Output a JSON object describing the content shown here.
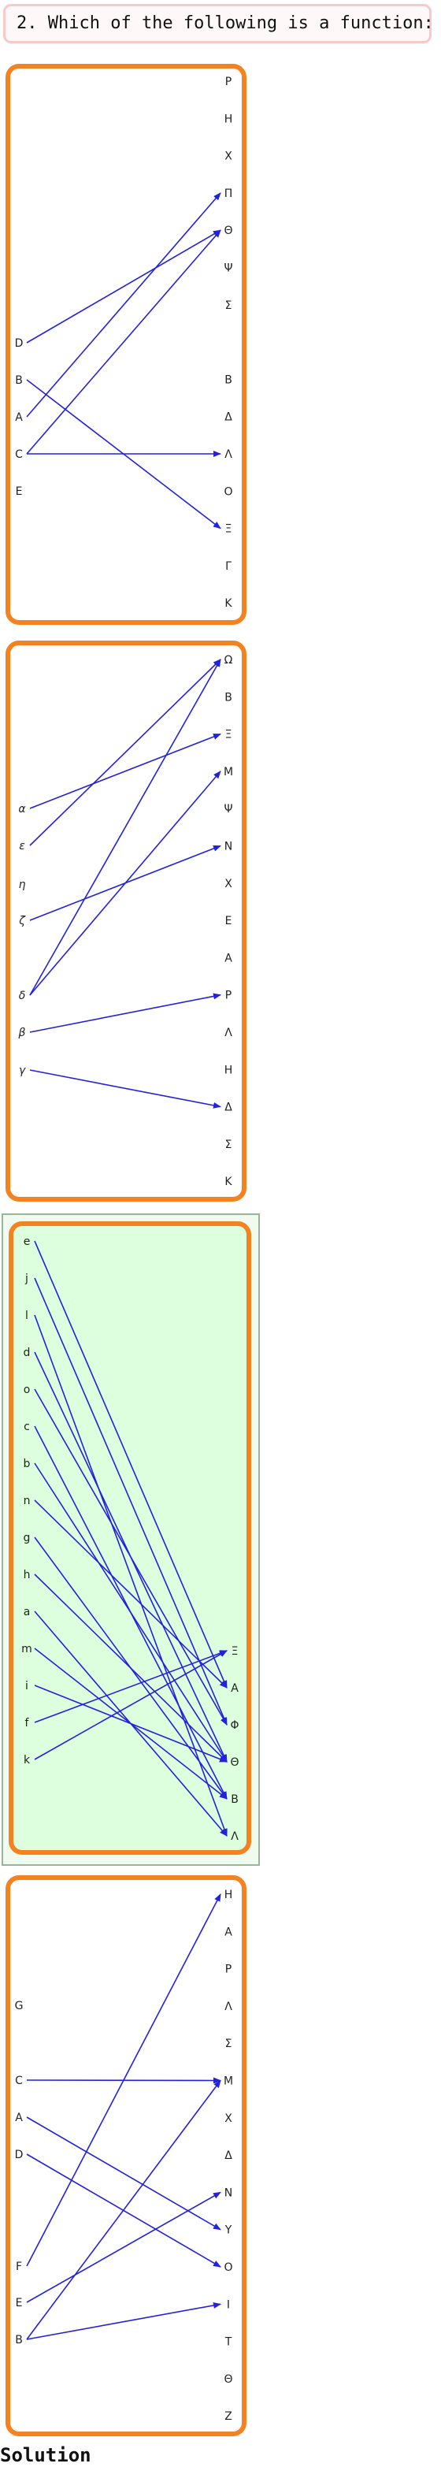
{
  "question": "2. Which of the following is a function:",
  "solution_label": "Solution",
  "colors": {
    "panel_border": "#f58220",
    "arrow": "#2222dd",
    "highlight_fill": "#ddffdd",
    "question_border": "#f7c9c9"
  },
  "panels": [
    {
      "selected": false,
      "left": [
        "D",
        "B",
        "A",
        "C",
        "E"
      ],
      "right": [
        "Ρ",
        "Η",
        "Χ",
        "Π",
        "Θ",
        "Ψ",
        "Σ",
        "",
        "Β",
        "Δ",
        "Λ",
        "Ο",
        "Ξ",
        "Γ",
        "Κ"
      ],
      "mappings": [
        [
          "D",
          "Θ"
        ],
        [
          "B",
          "Ξ"
        ],
        [
          "A",
          "Π"
        ],
        [
          "C",
          "Θ"
        ],
        [
          "C",
          "Λ"
        ]
      ]
    },
    {
      "selected": false,
      "left": [
        "α",
        "ε",
        "η",
        "ζ",
        "δ",
        "β",
        "γ"
      ],
      "right": [
        "Ω",
        "Β",
        "Ξ",
        "Μ",
        "Ψ",
        "Ν",
        "Χ",
        "Ε",
        "Α",
        "Ρ",
        "Λ",
        "Η",
        "Δ",
        "Σ",
        "Κ"
      ],
      "mappings": [
        [
          "α",
          "Ξ"
        ],
        [
          "ε",
          "Ω"
        ],
        [
          "ζ",
          "Ν"
        ],
        [
          "δ",
          "Ω"
        ],
        [
          "δ",
          "Μ"
        ],
        [
          "β",
          "Ρ"
        ],
        [
          "γ",
          "Δ"
        ]
      ]
    },
    {
      "selected": true,
      "left": [
        "e",
        "j",
        "l",
        "d",
        "o",
        "c",
        "b",
        "n",
        "g",
        "h",
        "a",
        "m",
        "i",
        "f",
        "k"
      ],
      "right": [
        "Ξ",
        "Α",
        "Φ",
        "Θ",
        "Β",
        "Λ"
      ],
      "mappings": [
        [
          "e",
          "Α"
        ],
        [
          "j",
          "Φ"
        ],
        [
          "l",
          "Λ"
        ],
        [
          "d",
          "Θ"
        ],
        [
          "o",
          "Φ"
        ],
        [
          "c",
          "Β"
        ],
        [
          "b",
          "Θ"
        ],
        [
          "n",
          "Α"
        ],
        [
          "g",
          "Β"
        ],
        [
          "h",
          "Θ"
        ],
        [
          "a",
          "Λ"
        ],
        [
          "m",
          "Β"
        ],
        [
          "i",
          "Θ"
        ],
        [
          "f",
          "Ξ"
        ],
        [
          "k",
          "Ξ"
        ]
      ]
    },
    {
      "selected": false,
      "left": [
        "G",
        "C",
        "A",
        "D",
        "F",
        "E",
        "B"
      ],
      "right": [
        "Η",
        "Α",
        "Ρ",
        "Λ",
        "Σ",
        "Μ",
        "Χ",
        "Δ",
        "Ν",
        "Υ",
        "Ο",
        "Ι",
        "Τ",
        "Θ",
        "Ζ"
      ],
      "mappings": [
        [
          "C",
          "Μ"
        ],
        [
          "A",
          "Υ"
        ],
        [
          "D",
          "Ο"
        ],
        [
          "F",
          "Η"
        ],
        [
          "E",
          "Ν"
        ],
        [
          "B",
          "Μ"
        ],
        [
          "B",
          "Ι"
        ]
      ]
    }
  ]
}
